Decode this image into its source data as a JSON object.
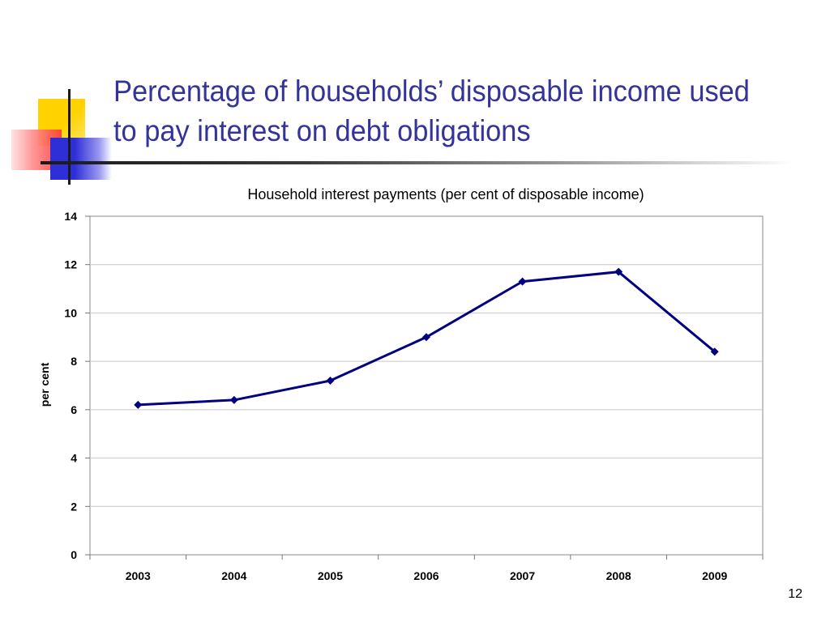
{
  "slide": {
    "title": "Percentage of households’ disposable income used to pay interest on debt obligations",
    "page_number": "12"
  },
  "colors": {
    "title": "#333399",
    "series_line": "#000080"
  },
  "chart_data": {
    "type": "line",
    "title": "Household interest payments (per cent of disposable income)",
    "xlabel": "",
    "ylabel": "per cent",
    "categories": [
      "2003",
      "2004",
      "2005",
      "2006",
      "2007",
      "2008",
      "2009"
    ],
    "series": [
      {
        "values": [
          6.2,
          6.4,
          7.2,
          9.0,
          11.3,
          11.7,
          8.4
        ]
      }
    ],
    "ylim": [
      0,
      14
    ],
    "yticks": [
      "0",
      "2",
      "4",
      "6",
      "8",
      "10",
      "12",
      "14"
    ],
    "grid": "horizontal",
    "legend": "none",
    "marker": "diamond"
  }
}
